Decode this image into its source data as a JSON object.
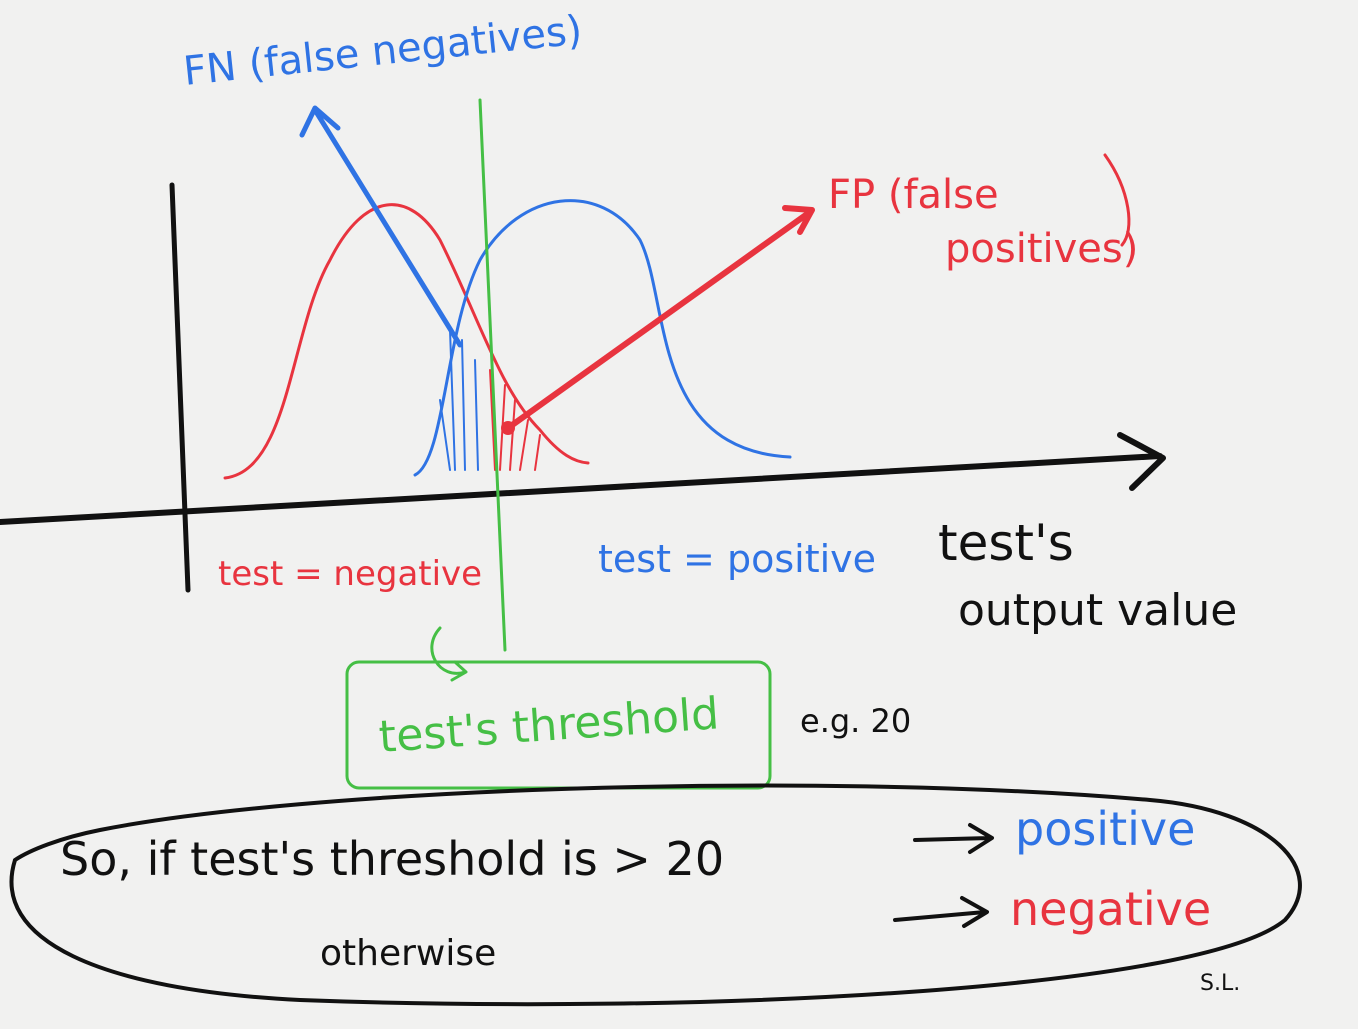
{
  "annotations": {
    "fn_label": "FN (false negatives)",
    "fp_label": [
      "FP (false",
      "positives)"
    ],
    "region_negative": "test = negative",
    "region_positive": "test = positive",
    "x_axis_label": [
      "test's",
      "output value"
    ],
    "threshold_label": "test's threshold",
    "threshold_example": "e.g. 20"
  },
  "rule": {
    "condition": "So, if test's threshold is > 20",
    "positive": "positive",
    "otherwise": "otherwise",
    "negative": "negative"
  },
  "signature": "S.L."
}
